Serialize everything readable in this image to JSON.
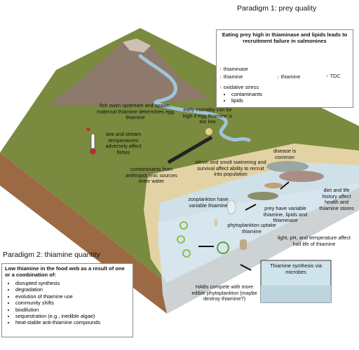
{
  "paradigm1": {
    "title": "Paradigm 1: prey quality",
    "header": "Eating prey high in thiaminase and lipids leads to recruitment failure in salmonines",
    "prey_effects": [
      "thiaminase",
      "thiamine"
    ],
    "salmon_effect": "thiamine",
    "larvae_effect": "TDC",
    "stress_title": "oxidative stress",
    "stress_items": [
      "contaminants",
      "lipids"
    ]
  },
  "paradigm2": {
    "title": "Paradigm 2: thiamine quantity",
    "header": "Low thiamine in the food web as a result of one or a combination of:",
    "items": [
      "disrupted synthesis",
      "degradation",
      "evolution of thiamine use",
      "community shifts",
      "biodilution",
      "sequestration (e.g., inedible algae)",
      "heat-stable anti-thiamine compounds"
    ]
  },
  "labels": {
    "spawn": "fish swim upstream and spawn. maternal thiamine determines egg thiamine",
    "mortality": "early mortality can be high if egg thiamine is too low",
    "temperature": "sea and stream temperatures adversely affect fishes",
    "contaminants": "contaminants from anthropogenic sources enter water",
    "disease": "disease is common",
    "alevin": "alevin and smolt swimming and survival affect ability to recruit into population",
    "diet": "diet and life history affect health and thiamine stores",
    "zooplankton": "zooplankton have variable thiamine",
    "prey": "prey have variable thiamine, lipids and thiaminase",
    "phytoplankton": "phytoplankton uptake thiamine",
    "light": "light, pH, and temperature affect half life of thiamine",
    "habs": "HABs compete with more edible phytoplankton (maybe destroy thiamine?)",
    "synthesis": "Thiamine synthesis via microbes"
  },
  "colors": {
    "grass": "#7a8a3e",
    "mountain": "#8e7a6c",
    "soil": "#9b6a44",
    "water": "#cfe0e8",
    "stream": "#9fc4d8",
    "sand": "#e3d3a4",
    "red_arrow": "#c62828"
  }
}
